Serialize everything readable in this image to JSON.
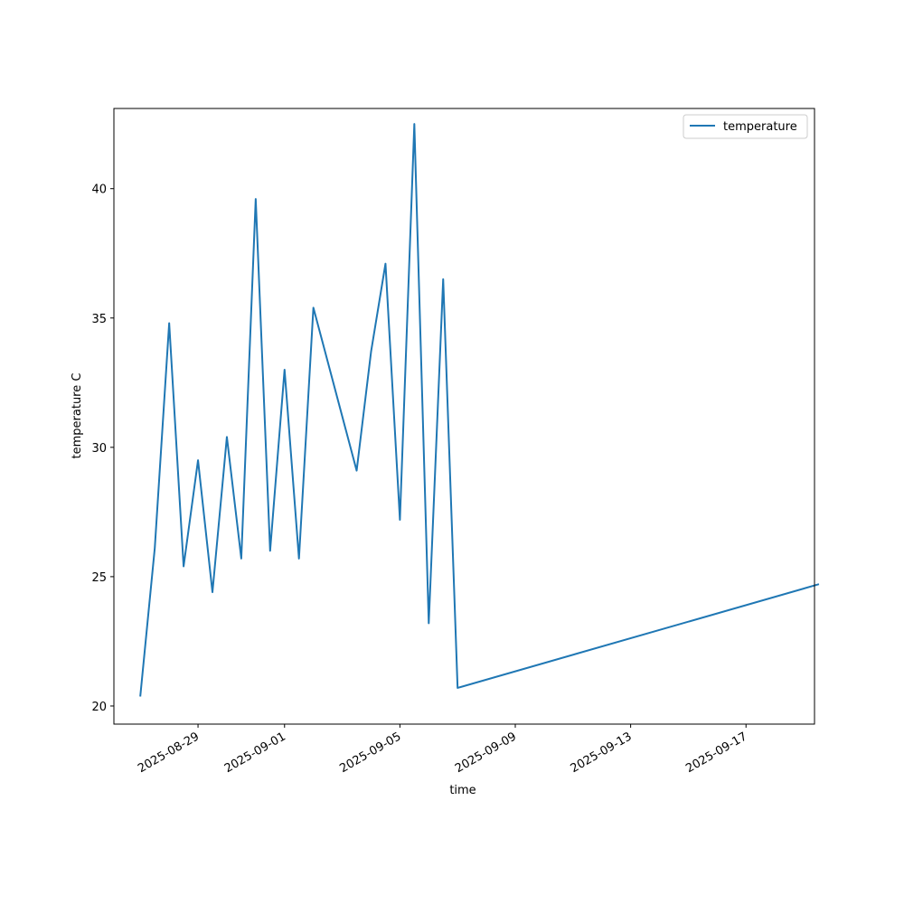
{
  "chart_data": {
    "type": "line",
    "xlabel": "time",
    "ylabel": "temperature C",
    "x_is_date": true,
    "xlim": [
      "2025-08-26T02:00",
      "2025-09-19T09:00"
    ],
    "ylim": [
      19.3,
      43.1
    ],
    "yticks": [
      20,
      25,
      30,
      35,
      40
    ],
    "xticks": [
      "2025-08-29",
      "2025-09-01",
      "2025-09-05",
      "2025-09-09",
      "2025-09-13",
      "2025-09-17"
    ],
    "grid": false,
    "legend": {
      "position": "top-right"
    },
    "series": [
      {
        "name": "temperature",
        "color": "#1f77b4",
        "points": [
          {
            "x": "2025-08-27T00:00",
            "y": 20.4
          },
          {
            "x": "2025-08-27T12:00",
            "y": 26.1
          },
          {
            "x": "2025-08-28T00:00",
            "y": 34.8
          },
          {
            "x": "2025-08-28T12:00",
            "y": 25.4
          },
          {
            "x": "2025-08-29T00:00",
            "y": 29.5
          },
          {
            "x": "2025-08-29T12:00",
            "y": 24.4
          },
          {
            "x": "2025-08-30T00:00",
            "y": 30.4
          },
          {
            "x": "2025-08-30T12:00",
            "y": 25.7
          },
          {
            "x": "2025-08-31T00:00",
            "y": 39.6
          },
          {
            "x": "2025-08-31T12:00",
            "y": 26.0
          },
          {
            "x": "2025-09-01T00:00",
            "y": 33.0
          },
          {
            "x": "2025-09-01T12:00",
            "y": 25.7
          },
          {
            "x": "2025-09-02T00:00",
            "y": 35.4
          },
          {
            "x": "2025-09-03T12:00",
            "y": 29.1
          },
          {
            "x": "2025-09-04T00:00",
            "y": 33.7
          },
          {
            "x": "2025-09-04T12:00",
            "y": 37.1
          },
          {
            "x": "2025-09-05T00:00",
            "y": 27.2
          },
          {
            "x": "2025-09-05T12:00",
            "y": 42.5
          },
          {
            "x": "2025-09-06T00:00",
            "y": 23.2
          },
          {
            "x": "2025-09-06T12:00",
            "y": 36.5
          },
          {
            "x": "2025-09-07T00:00",
            "y": 20.7
          },
          {
            "x": "2025-09-19T12:00",
            "y": 24.7
          }
        ]
      }
    ]
  }
}
